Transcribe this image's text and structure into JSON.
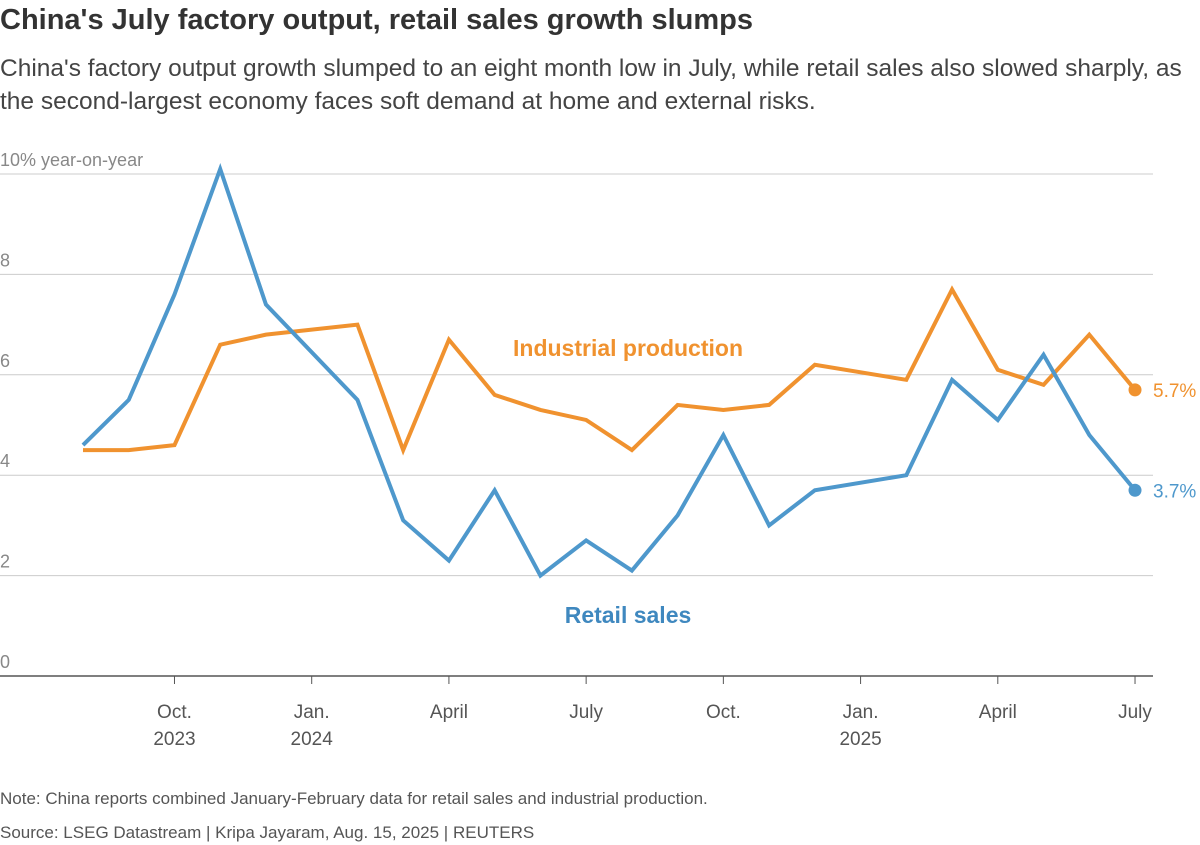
{
  "title": "China's July factory output, retail sales growth slumps",
  "subtitle": "China's factory output growth slumped to an eight month low in July, while retail sales also slowed sharply, as the second-largest economy faces soft demand at home and external risks.",
  "note": "Note: China reports combined January-February data for retail sales and industrial production.",
  "source": "Source: LSEG Datastream | Kripa Jayaram, Aug. 15, 2025 | REUTERS",
  "colors": {
    "industrial": "#f0922f",
    "retail": "#4e98cc",
    "grid": "#cccccc",
    "axis": "#555555"
  },
  "chart_data": {
    "type": "line",
    "title": "China's July factory output, retail sales growth slumps",
    "ylabel": "% year-on-year",
    "ylim": [
      0,
      10
    ],
    "yticks": [
      {
        "value": 10,
        "label": "10% year-on-year"
      },
      {
        "value": 8,
        "label": "8"
      },
      {
        "value": 6,
        "label": "6"
      },
      {
        "value": 4,
        "label": "4"
      },
      {
        "value": 2,
        "label": "2"
      },
      {
        "value": 0,
        "label": "0"
      }
    ],
    "x": [
      "2023-08",
      "2023-09",
      "2023-10",
      "2023-11",
      "2023-12",
      "2024-01",
      "2024-02",
      "2024-03",
      "2024-04",
      "2024-05",
      "2024-06",
      "2024-07",
      "2024-08",
      "2024-09",
      "2024-10",
      "2024-11",
      "2024-12",
      "2025-01",
      "2025-02",
      "2025-03",
      "2025-04",
      "2025-05",
      "2025-06",
      "2025-07"
    ],
    "xticks": [
      {
        "index": 2,
        "line1": "Oct.",
        "line2": "2023"
      },
      {
        "index": 5,
        "line1": "Jan.",
        "line2": "2024"
      },
      {
        "index": 8,
        "line1": "April",
        "line2": ""
      },
      {
        "index": 11,
        "line1": "July",
        "line2": ""
      },
      {
        "index": 14,
        "line1": "Oct.",
        "line2": ""
      },
      {
        "index": 17,
        "line1": "Jan.",
        "line2": "2025"
      },
      {
        "index": 20,
        "line1": "April",
        "line2": ""
      },
      {
        "index": 23,
        "line1": "July",
        "line2": ""
      }
    ],
    "series": [
      {
        "name": "Industrial production",
        "color": "#f0922f",
        "values": [
          4.5,
          4.5,
          4.6,
          6.6,
          6.8,
          null,
          7.0,
          4.5,
          6.7,
          5.6,
          5.3,
          5.1,
          4.5,
          5.4,
          5.3,
          5.4,
          6.2,
          null,
          5.9,
          7.7,
          6.1,
          5.8,
          6.8,
          5.7
        ],
        "end_label": "5.7%"
      },
      {
        "name": "Retail sales",
        "color": "#4e98cc",
        "values": [
          4.6,
          5.5,
          7.6,
          10.1,
          7.4,
          null,
          5.5,
          3.1,
          2.3,
          3.7,
          2.0,
          2.7,
          2.1,
          3.2,
          4.8,
          3.0,
          3.7,
          null,
          4.0,
          5.9,
          5.1,
          6.4,
          4.8,
          3.7
        ],
        "end_label": "3.7%"
      }
    ]
  }
}
